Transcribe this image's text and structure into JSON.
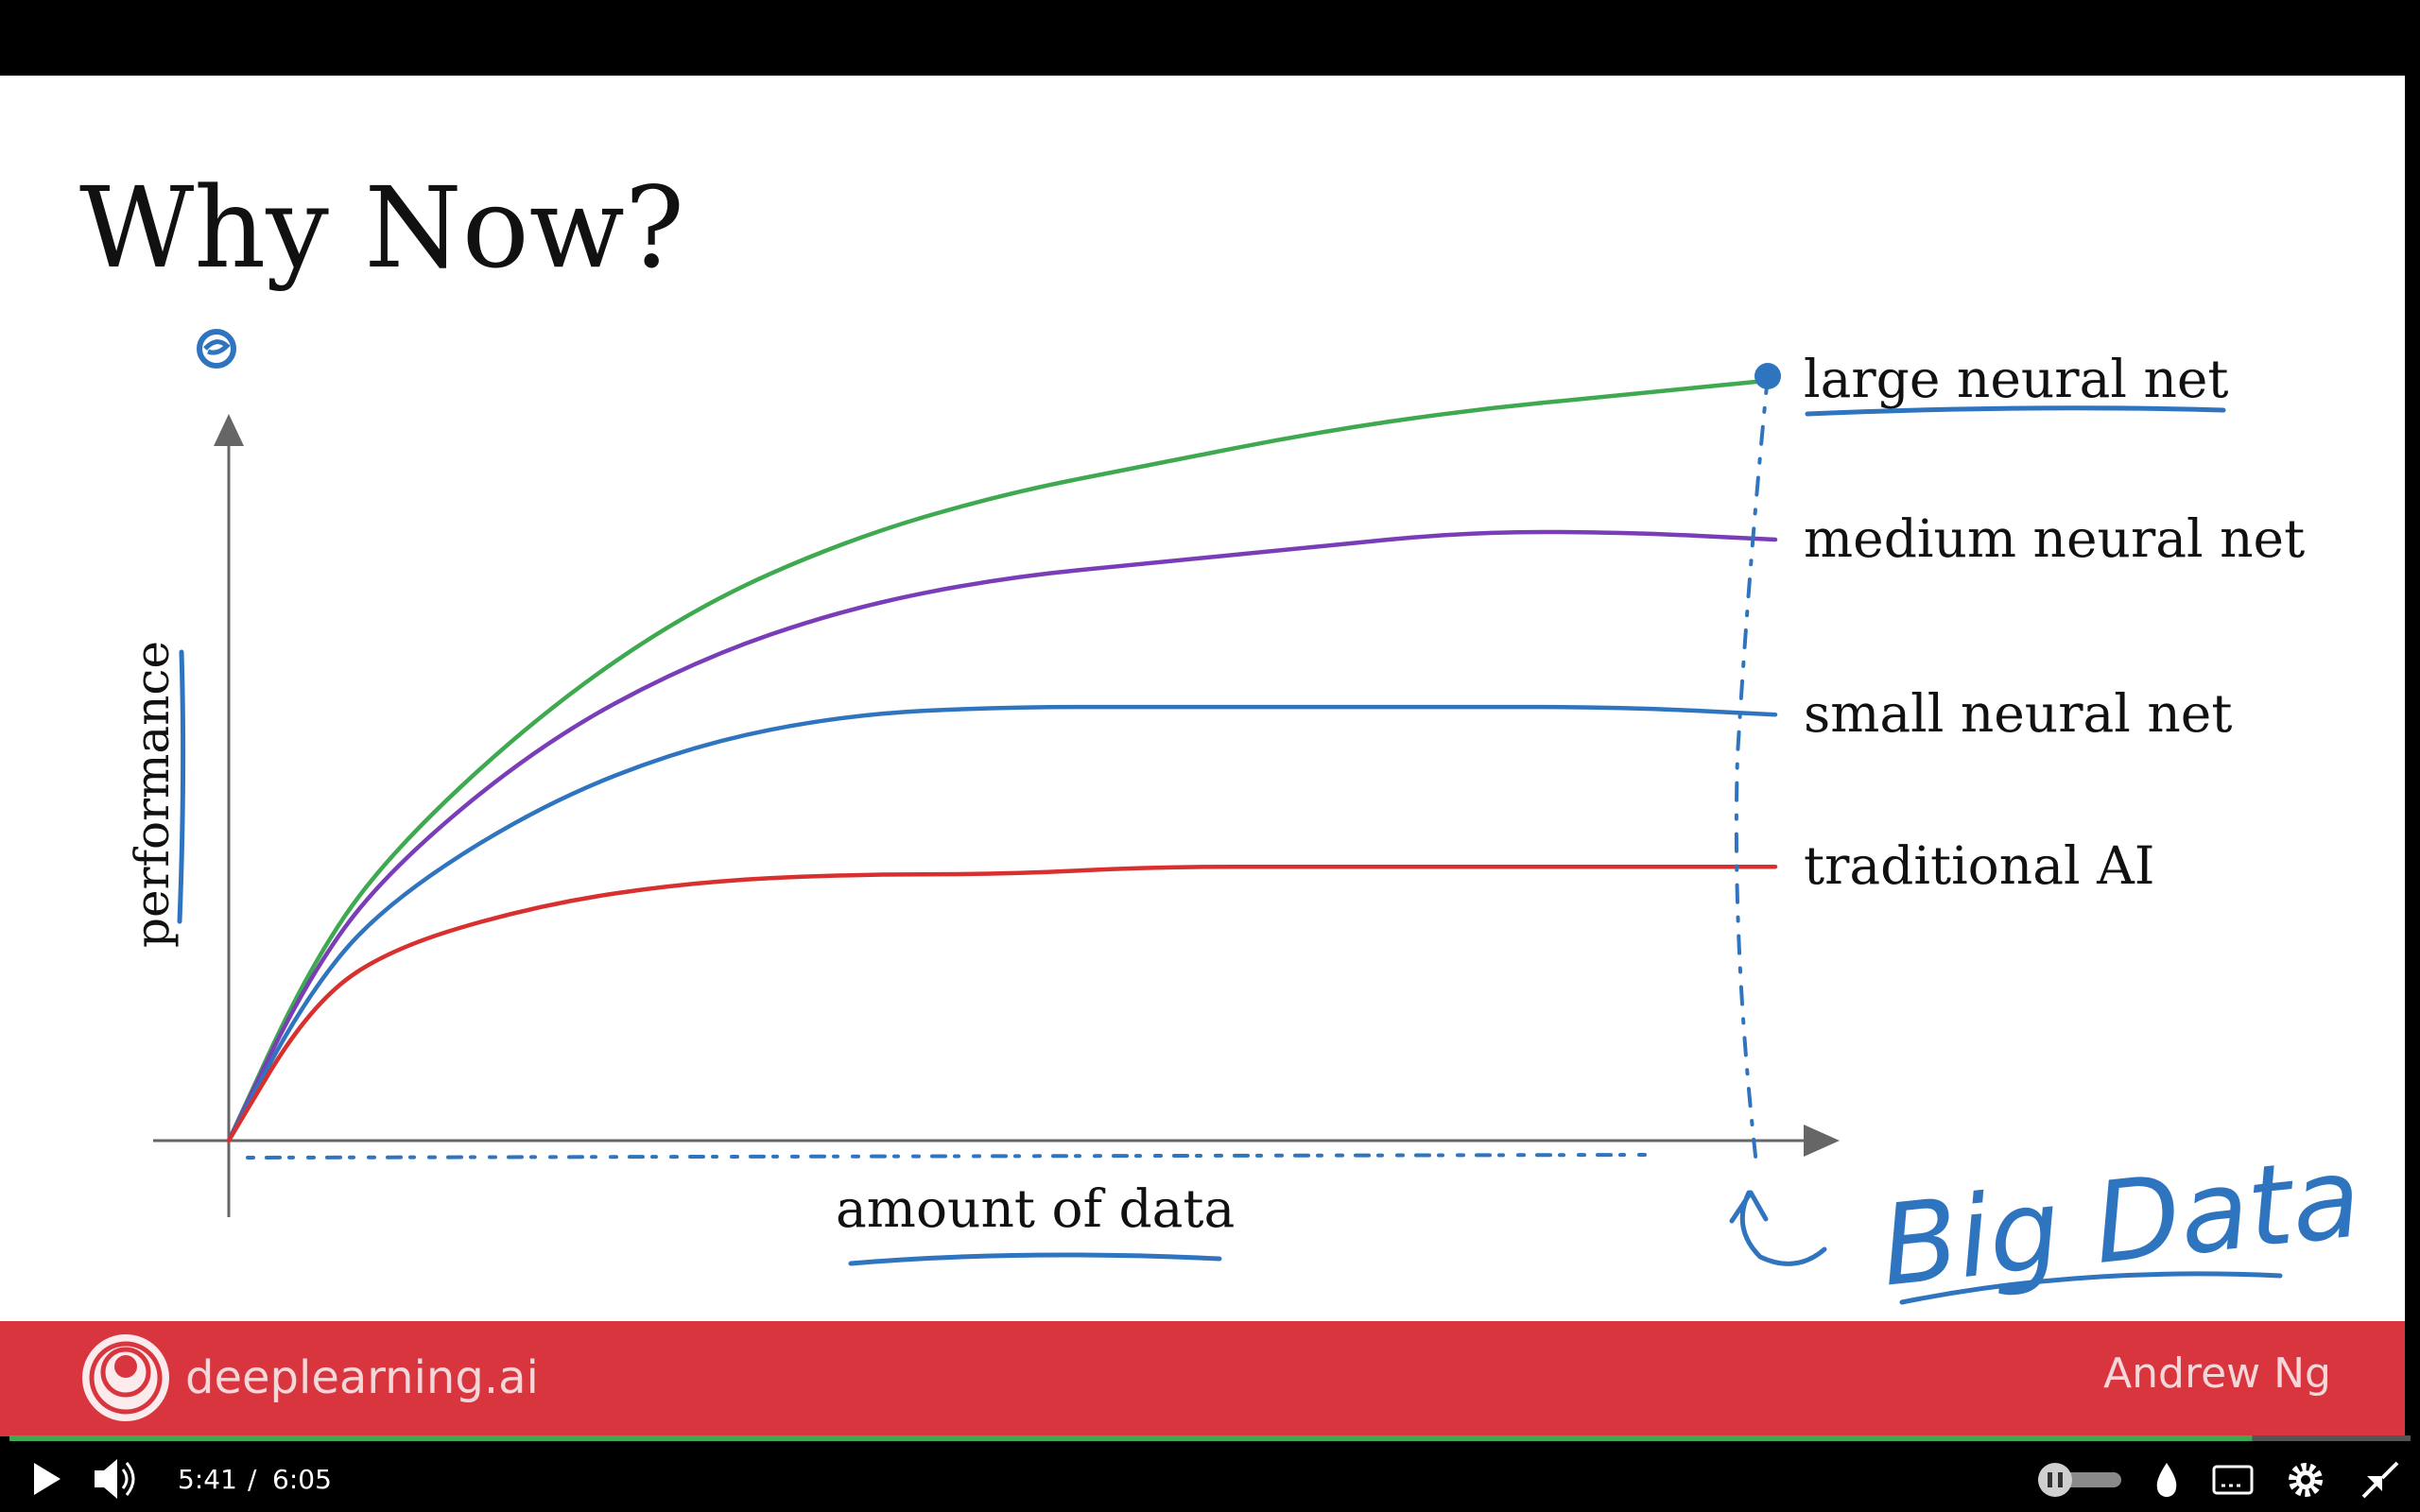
{
  "slide": {
    "title": "Why Now?",
    "brand": "deeplearning.ai",
    "author": "Andrew Ng",
    "handwritten_note": "Big Data"
  },
  "chart_data": {
    "type": "line",
    "title": "",
    "xlabel": "amount of data",
    "ylabel": "performance",
    "xlim": [
      0,
      100
    ],
    "ylim": [
      0,
      100
    ],
    "grid": false,
    "legend": "labels at right end of each line",
    "series": [
      {
        "name": "large neural net",
        "color": "#3ea94f",
        "x": [
          0,
          5,
          10,
          20,
          30,
          40,
          50,
          60,
          70,
          80,
          90,
          100
        ],
        "y": [
          0,
          22,
          37,
          56,
          70,
          79,
          85,
          89,
          93,
          96,
          98,
          100
        ]
      },
      {
        "name": "medium neural net",
        "color": "#7a3db8",
        "x": [
          0,
          5,
          10,
          20,
          30,
          40,
          50,
          60,
          70,
          80,
          90,
          100
        ],
        "y": [
          0,
          21,
          35,
          52,
          63,
          70,
          74,
          76,
          78,
          80,
          80,
          79
        ]
      },
      {
        "name": "small neural net",
        "color": "#2f74bf",
        "x": [
          0,
          5,
          10,
          20,
          30,
          40,
          50,
          60,
          70,
          80,
          90,
          100
        ],
        "y": [
          0,
          19,
          31,
          44,
          52,
          56,
          57,
          57,
          57,
          57,
          57,
          56
        ]
      },
      {
        "name": "traditional AI",
        "color": "#d8302e",
        "x": [
          0,
          5,
          10,
          20,
          30,
          40,
          50,
          60,
          70,
          80,
          90,
          100
        ],
        "y": [
          0,
          17,
          25,
          31,
          34,
          35,
          35,
          36,
          36,
          36,
          36,
          36
        ]
      }
    ]
  },
  "player": {
    "current_time": "5:41",
    "separator": "/",
    "duration": "6:05",
    "progress_fraction": 0.934,
    "icons": {
      "play": "play-icon",
      "volume": "volume-icon",
      "autoplay": "autoplay-toggle",
      "quality": "droplet-icon",
      "captions": "captions-icon",
      "settings": "gear-icon",
      "exit_fullscreen": "exit-fullscreen-icon"
    }
  }
}
